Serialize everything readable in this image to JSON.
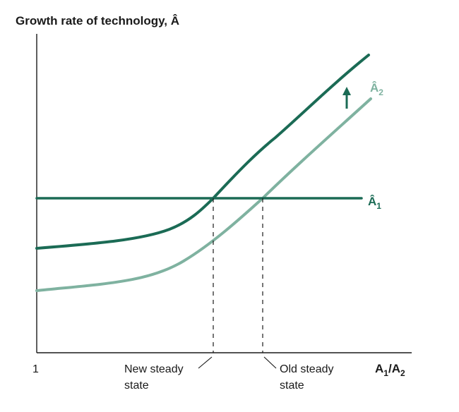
{
  "figure": {
    "y_axis_title": "Growth rate of technology, Â",
    "x_axis_label": {
      "base": "A",
      "sub1": "1",
      "slash": "/",
      "base2": "A",
      "sub2": "2"
    },
    "origin_label": "1",
    "new_steady_state": [
      "New steady",
      "state"
    ],
    "old_steady_state": [
      "Old steady",
      "state"
    ],
    "curve_a1_label": {
      "base": "Â",
      "sub": "1"
    },
    "curve_a2_label": {
      "base": "Â",
      "sub": "2"
    },
    "colors": {
      "dark": "#1b6b55",
      "light": "#7fb2a0",
      "axis": "#1a1a1a"
    },
    "shift_arrow_icon": "up-arrow-icon"
  }
}
